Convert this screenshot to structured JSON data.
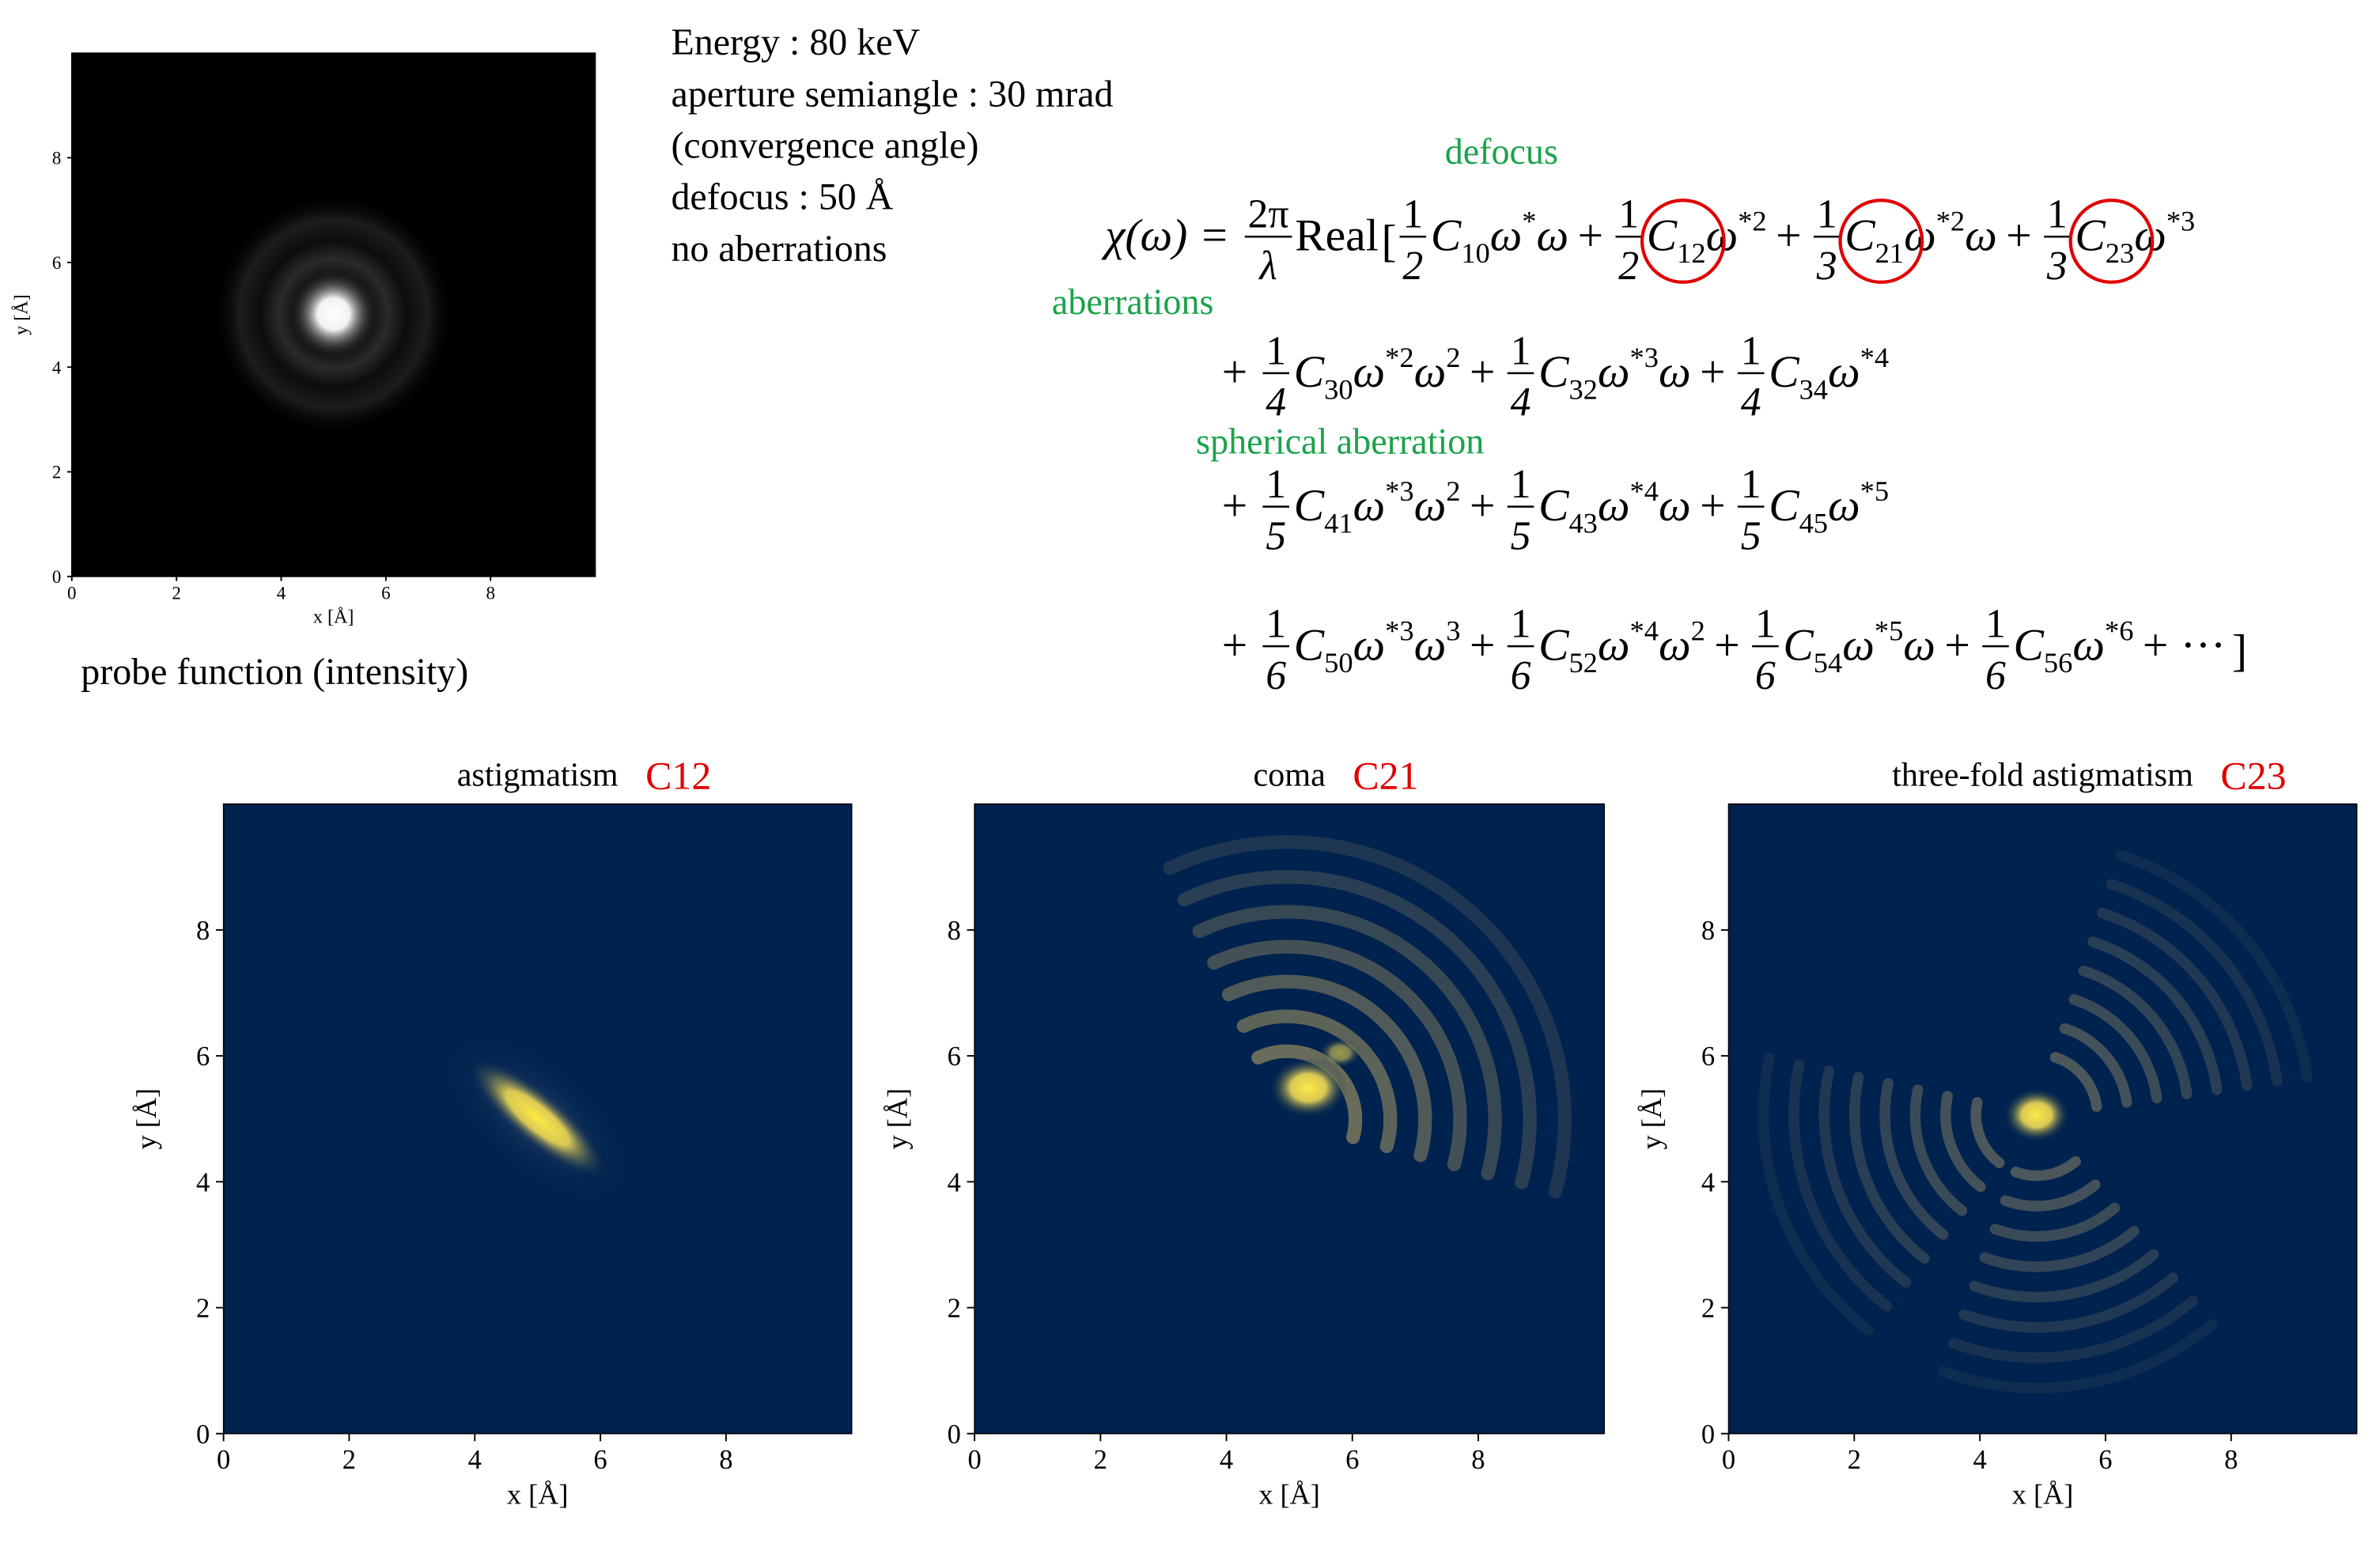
{
  "settings": {
    "lines": [
      "Energy : 80 keV",
      "aperture semiangle : 30 mrad",
      "(convergence angle)",
      "defocus : 50 Å",
      "no aberrations"
    ]
  },
  "annotations": {
    "defocus": "defocus",
    "aberrations": "aberrations",
    "spherical": "spherical aberration"
  },
  "probe": {
    "caption": "probe function (intensity)",
    "xlabel": "x [Å]",
    "ylabel": "y [Å]",
    "xlim": [
      0,
      10
    ],
    "ylim": [
      0,
      10
    ],
    "xticks": [
      0,
      2,
      4,
      6,
      8
    ],
    "yticks": [
      0,
      2,
      4,
      6,
      8
    ]
  },
  "panels": [
    {
      "title": "astigmatism",
      "tag": "C12",
      "xlabel": "x [Å]",
      "ylabel": "y [Å]",
      "xlim": [
        0,
        10
      ],
      "ylim": [
        0,
        10
      ],
      "xticks": [
        0,
        2,
        4,
        6,
        8
      ],
      "yticks": [
        0,
        2,
        4,
        6,
        8
      ]
    },
    {
      "title": "coma",
      "tag": "C21",
      "xlabel": "x [Å]",
      "ylabel": "y [Å]",
      "xlim": [
        0,
        10
      ],
      "ylim": [
        0,
        10
      ],
      "xticks": [
        0,
        2,
        4,
        6,
        8
      ],
      "yticks": [
        0,
        2,
        4,
        6,
        8
      ]
    },
    {
      "title": "three-fold astigmatism",
      "tag": "C23",
      "xlabel": "x [Å]",
      "ylabel": "y [Å]",
      "xlim": [
        0,
        10
      ],
      "ylim": [
        0,
        10
      ],
      "xticks": [
        0,
        2,
        4,
        6,
        8
      ],
      "yticks": [
        0,
        2,
        4,
        6,
        8
      ]
    }
  ],
  "equation": {
    "lhs": "χ(ω) =",
    "prefactor": {
      "num": "2π",
      "den": "λ"
    },
    "operator": "Real",
    "open": "[",
    "close": "]",
    "plus": "+",
    "symbol": "C",
    "ellipsis": "···",
    "rows": [
      [
        {
          "num": "1",
          "den": "2",
          "sub": "10",
          "factors": [
            {
              "b": "ω",
              "p": "*"
            },
            {
              "b": "ω"
            }
          ]
        },
        {
          "num": "1",
          "den": "2",
          "sub": "12",
          "circled": true,
          "factors": [
            {
              "b": "ω",
              "p": "*2"
            }
          ]
        },
        {
          "num": "1",
          "den": "3",
          "sub": "21",
          "circled": true,
          "factors": [
            {
              "b": "ω",
              "p": "*2"
            },
            {
              "b": "ω"
            }
          ]
        },
        {
          "num": "1",
          "den": "3",
          "sub": "23",
          "circled": true,
          "factors": [
            {
              "b": "ω",
              "p": "*3"
            }
          ]
        }
      ],
      [
        {
          "num": "1",
          "den": "4",
          "sub": "30",
          "factors": [
            {
              "b": "ω",
              "p": "*2"
            },
            {
              "b": "ω",
              "p": "2"
            }
          ]
        },
        {
          "num": "1",
          "den": "4",
          "sub": "32",
          "factors": [
            {
              "b": "ω",
              "p": "*3"
            },
            {
              "b": "ω"
            }
          ]
        },
        {
          "num": "1",
          "den": "4",
          "sub": "34",
          "factors": [
            {
              "b": "ω",
              "p": "*4"
            }
          ]
        }
      ],
      [
        {
          "num": "1",
          "den": "5",
          "sub": "41",
          "factors": [
            {
              "b": "ω",
              "p": "*3"
            },
            {
              "b": "ω",
              "p": "2"
            }
          ]
        },
        {
          "num": "1",
          "den": "5",
          "sub": "43",
          "factors": [
            {
              "b": "ω",
              "p": "*4"
            },
            {
              "b": "ω"
            }
          ]
        },
        {
          "num": "1",
          "den": "5",
          "sub": "45",
          "factors": [
            {
              "b": "ω",
              "p": "*5"
            }
          ]
        }
      ],
      [
        {
          "num": "1",
          "den": "6",
          "sub": "50",
          "factors": [
            {
              "b": "ω",
              "p": "*3"
            },
            {
              "b": "ω",
              "p": "3"
            }
          ]
        },
        {
          "num": "1",
          "den": "6",
          "sub": "52",
          "factors": [
            {
              "b": "ω",
              "p": "*4"
            },
            {
              "b": "ω",
              "p": "2"
            }
          ]
        },
        {
          "num": "1",
          "den": "6",
          "sub": "54",
          "factors": [
            {
              "b": "ω",
              "p": "*5"
            },
            {
              "b": "ω"
            }
          ]
        },
        {
          "num": "1",
          "den": "6",
          "sub": "56",
          "factors": [
            {
              "b": "ω",
              "p": "*6"
            }
          ]
        }
      ]
    ]
  }
}
